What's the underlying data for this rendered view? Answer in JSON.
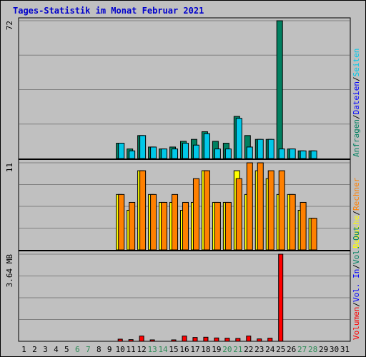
{
  "title": "Tages-Statistik im Monat Februar 2021",
  "colors": {
    "background": "#c0c0c0",
    "title": "#0000cc",
    "grid": "#808080",
    "day_normal": "#000000",
    "day_weekend": "#2e8b57"
  },
  "chart_data": {
    "type": "bar",
    "title": "Tages-Statistik im Monat Februar 2021",
    "days": [
      "1",
      "2",
      "3",
      "4",
      "5",
      "6",
      "7",
      "8",
      "9",
      "10",
      "11",
      "12",
      "13",
      "14",
      "15",
      "16",
      "17",
      "18",
      "19",
      "20",
      "21",
      "22",
      "23",
      "24",
      "25",
      "26",
      "27",
      "28",
      "29",
      "30",
      "31"
    ],
    "weekend_days": [
      "6",
      "7",
      "13",
      "14",
      "20",
      "21",
      "27",
      "28"
    ],
    "panels": [
      {
        "name": "requests",
        "ymax_label": "72",
        "ymax": 72,
        "legend": [
          {
            "text": "Anfragen",
            "color": "#008060"
          },
          {
            "text": "/",
            "color": "#000000"
          },
          {
            "text": "Dateien",
            "color": "#0000ff"
          },
          {
            "text": "/",
            "color": "#000000"
          },
          {
            "text": "Seiten",
            "color": "#00c8e8"
          }
        ],
        "series": [
          {
            "name": "Anfragen",
            "color": "#008060",
            "values": [
              0,
              0,
              0,
              0,
              0,
              0,
              0,
              0,
              0,
              8,
              5,
              12,
              6,
              5,
              6,
              9,
              10,
              14,
              9,
              8,
              22,
              12,
              10,
              10,
              72,
              5,
              4,
              4,
              0,
              0,
              0
            ]
          },
          {
            "name": "Seiten",
            "color": "#00c8e8",
            "values": [
              0,
              0,
              0,
              0,
              0,
              0,
              0,
              0,
              0,
              8,
              4,
              12,
              6,
              5,
              5,
              8,
              7,
              13,
              5,
              5,
              21,
              6,
              10,
              10,
              5,
              5,
              4,
              4,
              0,
              0,
              0
            ]
          }
        ]
      },
      {
        "name": "visits",
        "ymax_label": "11",
        "ymax": 11,
        "legend": [
          {
            "text": "Besuche",
            "color": "#ffff00"
          },
          {
            "text": "/",
            "color": "#000000"
          },
          {
            "text": "Rechner",
            "color": "#ff8000"
          }
        ],
        "series": [
          {
            "name": "Besuche",
            "color": "#ffff00",
            "values": [
              0,
              0,
              0,
              0,
              0,
              0,
              0,
              0,
              0,
              7,
              5,
              10,
              7,
              6,
              6,
              5,
              6,
              10,
              6,
              6,
              10,
              7,
              10,
              9,
              7,
              7,
              5,
              4,
              0,
              0,
              0
            ]
          },
          {
            "name": "Rechner",
            "color": "#ff8000",
            "values": [
              0,
              0,
              0,
              0,
              0,
              0,
              0,
              0,
              0,
              7,
              6,
              10,
              7,
              6,
              7,
              6,
              9,
              10,
              6,
              6,
              9,
              11,
              11,
              10,
              10,
              7,
              6,
              4,
              0,
              0,
              0
            ]
          }
        ]
      },
      {
        "name": "volume",
        "ymax_label": "3.64 MB",
        "ymax": 3.64,
        "legend": [
          {
            "text": "Volumen",
            "color": "#ff0000"
          },
          {
            "text": "/",
            "color": "#000000"
          },
          {
            "text": "Vol. In",
            "color": "#0000ff"
          },
          {
            "text": "/",
            "color": "#000000"
          },
          {
            "text": "Vol. Out",
            "color": "#008060"
          }
        ],
        "series": [
          {
            "name": "Volumen",
            "color": "#ff0000",
            "values": [
              0,
              0,
              0,
              0,
              0,
              0,
              0,
              0,
              0,
              0.09,
              0.07,
              0.22,
              0.06,
              0,
              0.06,
              0.22,
              0.16,
              0.17,
              0.14,
              0.13,
              0.12,
              0.22,
              0.1,
              0.13,
              3.64,
              0,
              0,
              0,
              0,
              0,
              0
            ]
          }
        ]
      }
    ]
  }
}
